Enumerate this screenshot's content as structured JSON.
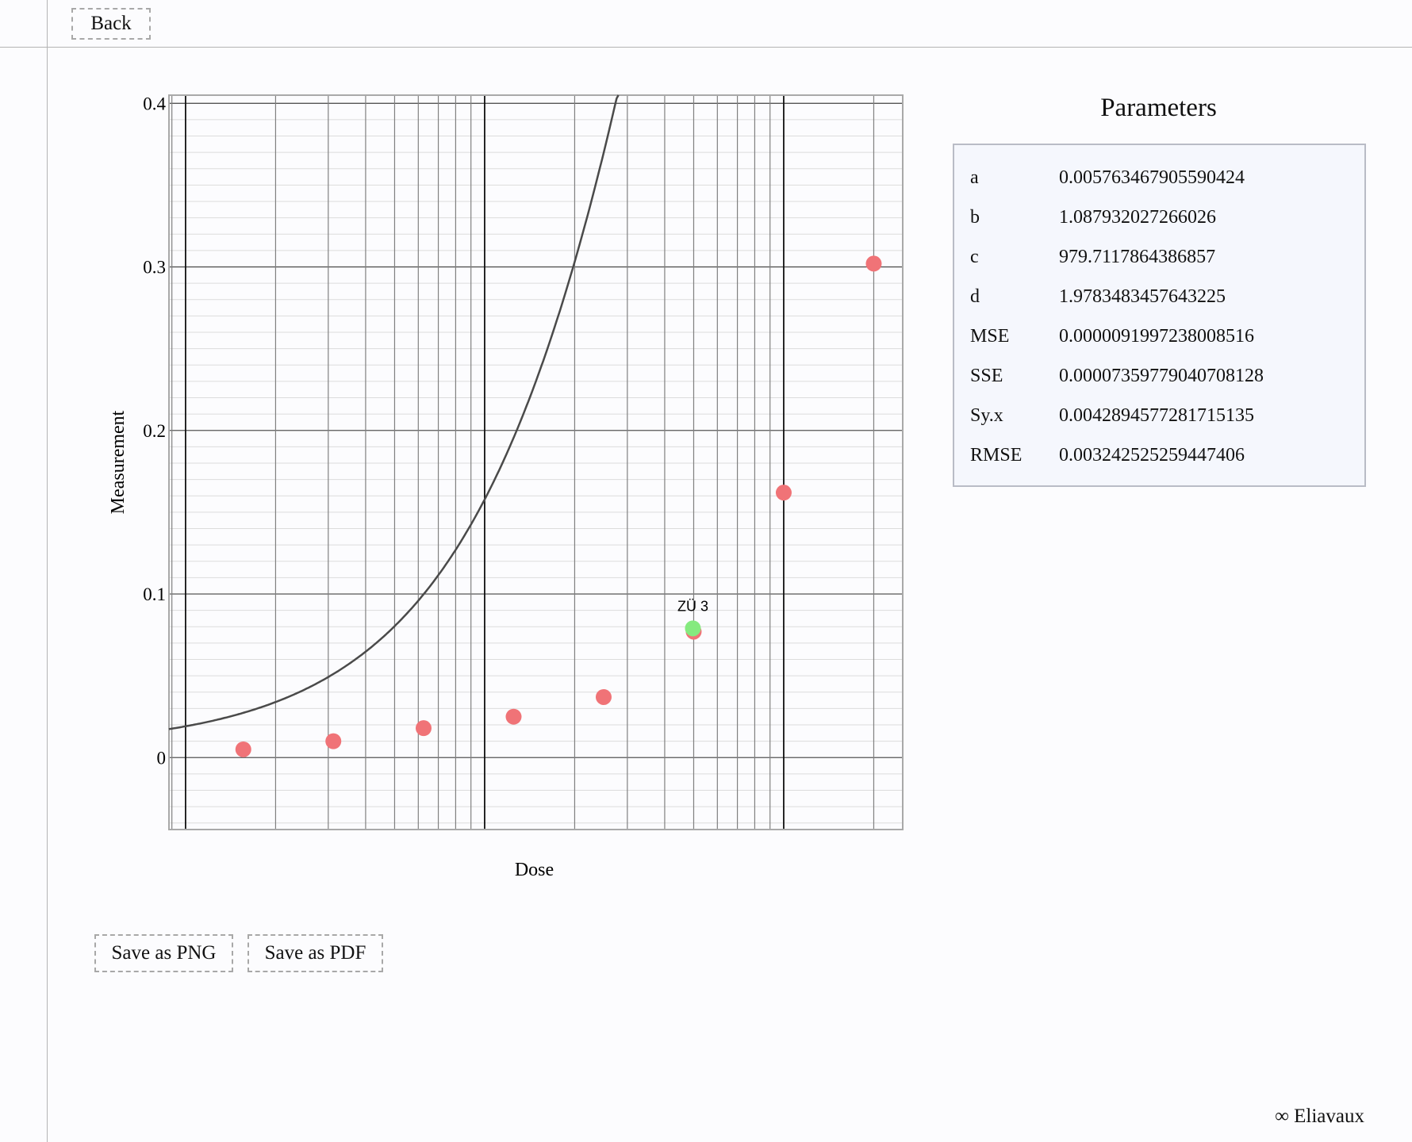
{
  "nav": {
    "back_label": "Back"
  },
  "actions": {
    "save_png_label": "Save as PNG",
    "save_pdf_label": "Save as PDF"
  },
  "parameters": {
    "title": "Parameters",
    "rows": [
      {
        "name": "a",
        "value": "0.005763467905590424"
      },
      {
        "name": "b",
        "value": "1.087932027266026"
      },
      {
        "name": "c",
        "value": "979.7117864386857"
      },
      {
        "name": "d",
        "value": "1.9783483457643225"
      },
      {
        "name": "MSE",
        "value": "0.0000091997238008516"
      },
      {
        "name": "SSE",
        "value": "0.00007359779040708128"
      },
      {
        "name": "Sy.x",
        "value": "0.004289457728171513​5"
      },
      {
        "name": "RMSE",
        "value": "0.003242525259447406"
      }
    ]
  },
  "footer": {
    "credit": "∞ Eliavaux"
  },
  "chart_data": {
    "type": "scatter",
    "x_scale": "log",
    "xlabel": "Dose",
    "ylabel": "Measurement",
    "xlim": [
      8.8,
      2500
    ],
    "ylim": [
      -0.044,
      0.405
    ],
    "yticks": [
      0,
      0.1,
      0.2,
      0.3,
      0.4
    ],
    "ytick_labels": [
      "0",
      "0.1",
      "0.2",
      "0.3",
      "0.4"
    ],
    "grid": true,
    "fit_params": {
      "a": 0.005763467905590424,
      "b": 1.087932027266026,
      "c": 979.7117864386857,
      "d": 1.9783483457643225
    },
    "series": [
      {
        "kind": "points",
        "color": "#f07377",
        "x": [
          15.6,
          31.2,
          62.5,
          125,
          250,
          500,
          1000,
          2000
        ],
        "y": [
          0.005,
          0.01,
          0.018,
          0.025,
          0.037,
          0.077,
          0.162,
          0.302
        ]
      },
      {
        "kind": "highlight",
        "color": "#85ea7f",
        "label": "ZÜ 3",
        "x": [
          497
        ],
        "y": [
          0.079
        ]
      },
      {
        "kind": "fit-curve",
        "color": "#4a4a4a"
      }
    ]
  }
}
